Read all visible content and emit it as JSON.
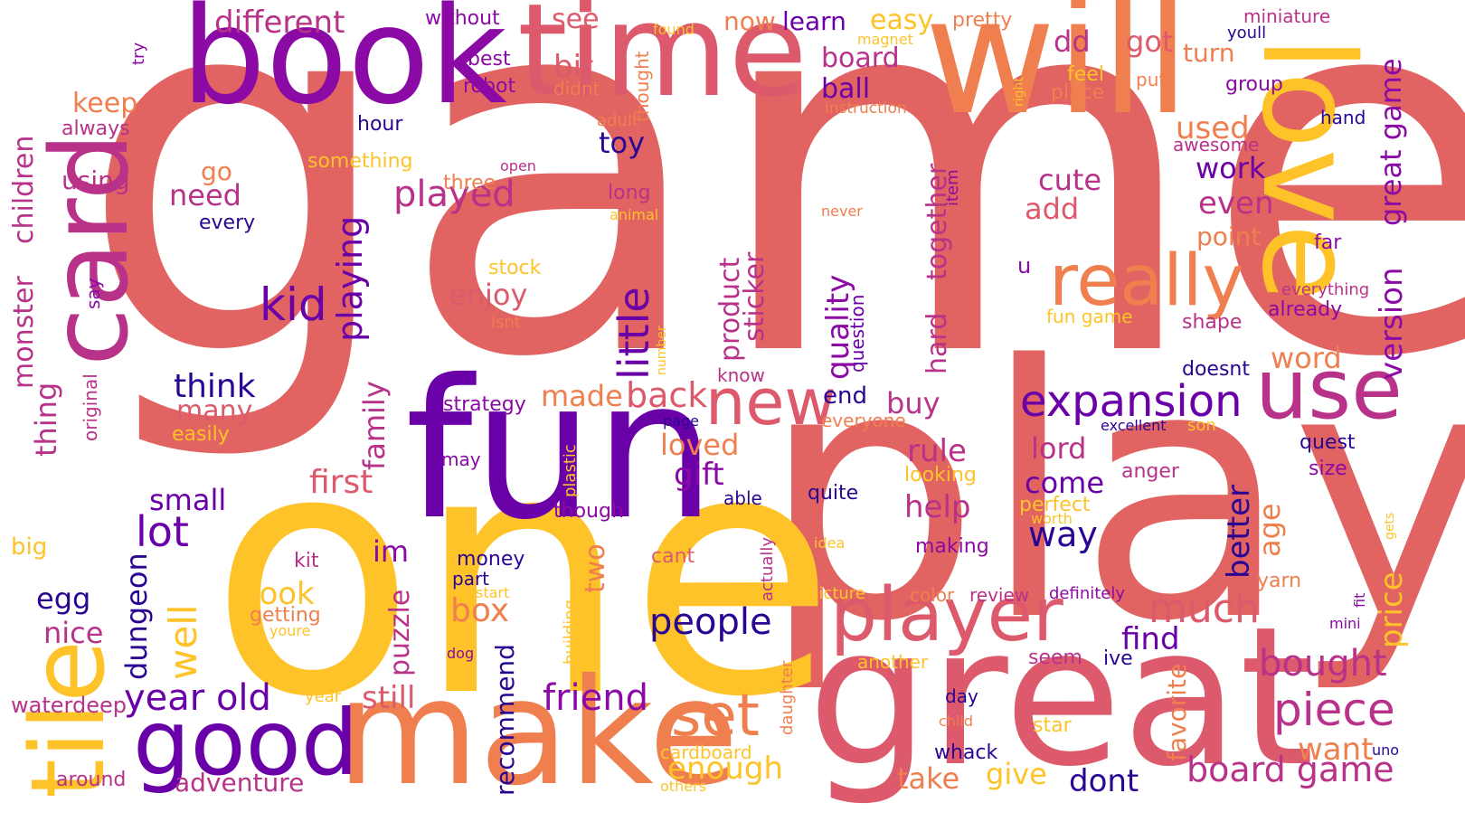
{
  "cloud": {
    "palette": {
      "coral": "#e16462",
      "yellow": "#fdc328",
      "orange": "#ef7f4f",
      "magenta": "#b83289",
      "purple": "#8b0aa5",
      "indigo": "#6a00a8",
      "navy": "#2a0593"
    },
    "words": [
      "game",
      "play",
      "one",
      "fun",
      "great",
      "make",
      "book",
      "time",
      "will",
      "love",
      "card",
      "tile",
      "use",
      "good",
      "player",
      "really",
      "new",
      "expansion",
      "set",
      "kid",
      "little",
      "played",
      "playing",
      "year old",
      "friend",
      "lot",
      "people",
      "piece",
      "much",
      "board game",
      "bought",
      "version",
      "made",
      "back",
      "quality",
      "family",
      "monster",
      "children",
      "thing",
      "think",
      "many",
      "need",
      "go",
      "different",
      "bit",
      "see",
      "dd",
      "got",
      "now",
      "learn",
      "easy",
      "board",
      "ball",
      "turn",
      "keep",
      "toy",
      "work",
      "even",
      "cute",
      "add",
      "used",
      "point",
      "word",
      "enjoy",
      "product",
      "sticker",
      "hard",
      "together",
      "great game",
      "way",
      "come",
      "lord",
      "rule",
      "help",
      "end",
      "buy",
      "gift",
      "loved",
      "first",
      "small",
      "im",
      "dungeon",
      "egg",
      "nice",
      "well",
      "box",
      "look",
      "puzzle",
      "two",
      "still",
      "adventure",
      "recommend",
      "enough",
      "take",
      "give",
      "dont",
      "find",
      "price",
      "favorite",
      "age",
      "better",
      "want",
      "waterdeep",
      "around",
      "big",
      "original",
      "say",
      "using",
      "always",
      "hour",
      "robot",
      "best",
      "without",
      "try",
      "something",
      "three",
      "every",
      "open",
      "long",
      "animal",
      "stock",
      "isnt",
      "number",
      "question",
      "item",
      "u",
      "fun game",
      "shape",
      "already",
      "everything",
      "far",
      "awesome",
      "hand",
      "group",
      "youll",
      "miniature",
      "pretty",
      "found",
      "magnet",
      "thought",
      "didnt",
      "adult",
      "feel",
      "put",
      "place",
      "right",
      "instruction",
      "never",
      "know",
      "everyone",
      "strategy",
      "easily",
      "page",
      "plastic",
      "may",
      "able",
      "though",
      "quite",
      "looking",
      "perfect",
      "worth",
      "son",
      "excellent",
      "quest",
      "size",
      "anger",
      "doesnt",
      "making",
      "money",
      "kit",
      "part",
      "cant",
      "idea",
      "picture",
      "color",
      "review",
      "definitely",
      "getting",
      "youre",
      "start",
      "dog",
      "building",
      "actually",
      "year",
      "daughter",
      "another",
      "seem",
      "ive",
      "day",
      "child",
      "star",
      "cardboard",
      "whack",
      "others",
      "uno",
      "mini",
      "fit",
      "yarn",
      "gets"
    ]
  }
}
